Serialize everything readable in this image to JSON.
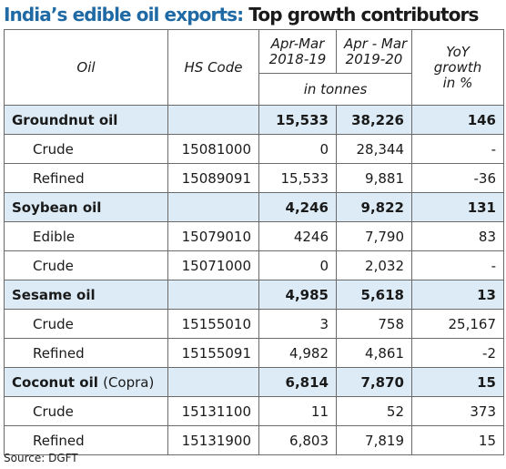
{
  "title": {
    "part1": "India’s edible oil exports:",
    "part2": "Top growth contributors"
  },
  "headers": {
    "oil": "Oil",
    "hs_code": "HS Code",
    "year1": [
      "Apr-Mar",
      "2018-19"
    ],
    "year2": [
      "Apr - Mar",
      "2019-20"
    ],
    "yoy": [
      "YoY",
      "growth",
      "in %"
    ],
    "unit": "in tonnes"
  },
  "groups": [
    {
      "name": "Groundnut oil",
      "suffix": "",
      "y1": "15,533",
      "y2": "38,226",
      "yoy": "146",
      "rows": [
        {
          "name": "Crude",
          "code": "15081000",
          "y1": "0",
          "y2": "28,344",
          "yoy": "-"
        },
        {
          "name": "Refined",
          "code": "15089091",
          "y1": "15,533",
          "y2": "9,881",
          "yoy": "-36"
        }
      ]
    },
    {
      "name": "Soybean oil",
      "suffix": "",
      "y1": "4,246",
      "y2": "9,822",
      "yoy": "131",
      "rows": [
        {
          "name": "Edible",
          "code": "15079010",
          "y1": "4246",
          "y2": "7,790",
          "yoy": "83"
        },
        {
          "name": "Crude",
          "code": "15071000",
          "y1": "0",
          "y2": "2,032",
          "yoy": "-"
        }
      ]
    },
    {
      "name": "Sesame oil",
      "suffix": "",
      "y1": "4,985",
      "y2": "5,618",
      "yoy": "13",
      "rows": [
        {
          "name": "Crude",
          "code": "15155010",
          "y1": "3",
          "y2": "758",
          "yoy": "25,167"
        },
        {
          "name": "Refined",
          "code": "15155091",
          "y1": "4,982",
          "y2": "4,861",
          "yoy": "-2"
        }
      ]
    },
    {
      "name": "Coconut oil",
      "suffix": "(Copra)",
      "y1": "6,814",
      "y2": "7,870",
      "yoy": "15",
      "rows": [
        {
          "name": "Crude",
          "code": "15131100",
          "y1": "11",
          "y2": "52",
          "yoy": "373"
        },
        {
          "name": "Refined",
          "code": "15131900",
          "y1": "6,803",
          "y2": "7,819",
          "yoy": "15"
        }
      ]
    }
  ],
  "source": "Source: DGFT",
  "colors": {
    "title_accent": "#1f6aa5",
    "group_row_bg": "#dcebf6",
    "border": "#6b6b6b"
  }
}
